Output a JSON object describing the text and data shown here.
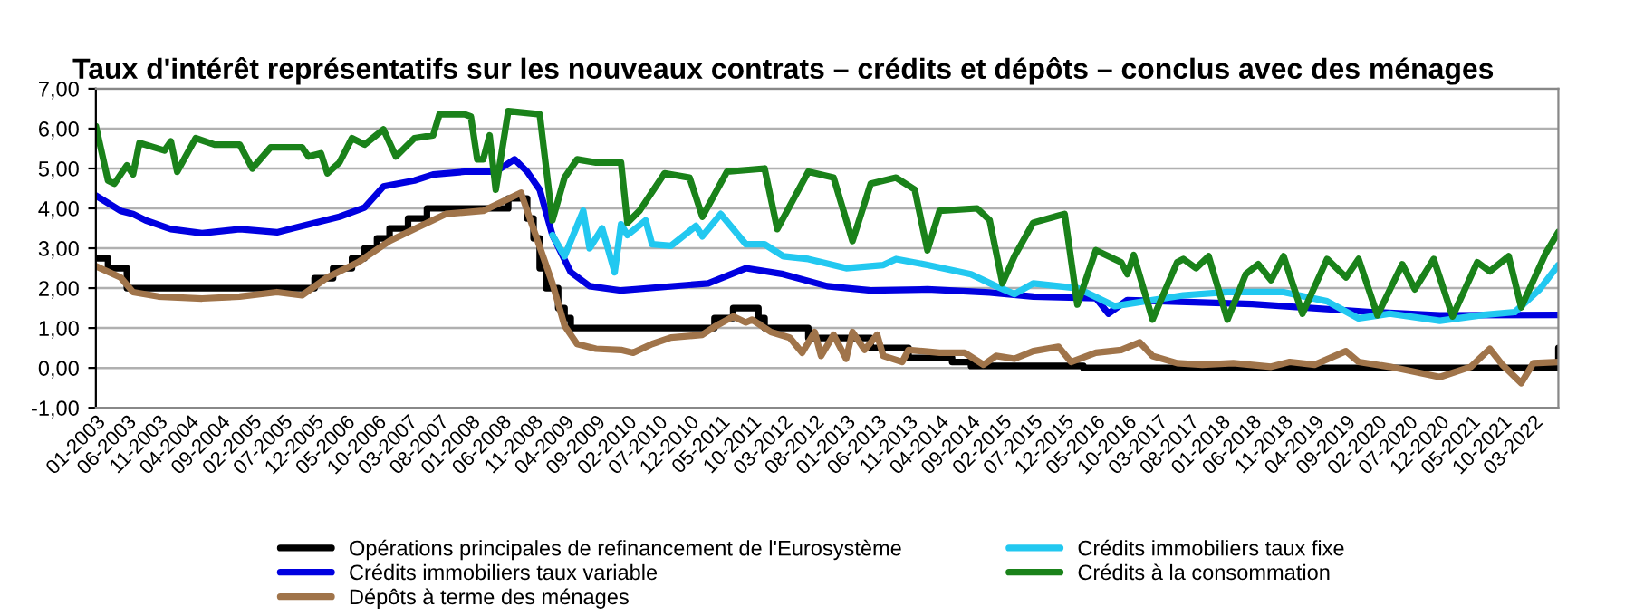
{
  "chart_data": {
    "type": "line",
    "title": "Taux d'intérêt représentatifs sur les nouveaux contrats – crédits et dépôts – conclus avec des ménages",
    "ylim": [
      -1,
      7
    ],
    "yticks": [
      {
        "value": -1,
        "label": "-1,00"
      },
      {
        "value": 0,
        "label": "0,00"
      },
      {
        "value": 1,
        "label": "1,00"
      },
      {
        "value": 2,
        "label": "2,00"
      },
      {
        "value": 3,
        "label": "3,00"
      },
      {
        "value": 4,
        "label": "4,00"
      },
      {
        "value": 5,
        "label": "5,00"
      },
      {
        "value": 6,
        "label": "6,00"
      },
      {
        "value": 7,
        "label": "7,00"
      }
    ],
    "xlim": [
      "2003-01",
      "2022-07"
    ],
    "xticks": [
      {
        "value": "2003-01",
        "label": "01-2003"
      },
      {
        "value": "2003-06",
        "label": "06-2003"
      },
      {
        "value": "2003-11",
        "label": "11-2003"
      },
      {
        "value": "2004-04",
        "label": "04-2004"
      },
      {
        "value": "2004-09",
        "label": "09-2004"
      },
      {
        "value": "2005-02",
        "label": "02-2005"
      },
      {
        "value": "2005-07",
        "label": "07-2005"
      },
      {
        "value": "2005-12",
        "label": "12-2005"
      },
      {
        "value": "2006-05",
        "label": "05-2006"
      },
      {
        "value": "2006-10",
        "label": "10-2006"
      },
      {
        "value": "2007-03",
        "label": "03-2007"
      },
      {
        "value": "2007-08",
        "label": "08-2007"
      },
      {
        "value": "2008-01",
        "label": "01-2008"
      },
      {
        "value": "2008-06",
        "label": "06-2008"
      },
      {
        "value": "2008-11",
        "label": "11-2008"
      },
      {
        "value": "2009-04",
        "label": "04-2009"
      },
      {
        "value": "2009-09",
        "label": "09-2009"
      },
      {
        "value": "2010-02",
        "label": "02-2010"
      },
      {
        "value": "2010-07",
        "label": "07-2010"
      },
      {
        "value": "2010-12",
        "label": "12-2010"
      },
      {
        "value": "2011-05",
        "label": "05-2011"
      },
      {
        "value": "2011-10",
        "label": "10-2011"
      },
      {
        "value": "2012-03",
        "label": "03-2012"
      },
      {
        "value": "2012-08",
        "label": "08-2012"
      },
      {
        "value": "2013-01",
        "label": "01-2013"
      },
      {
        "value": "2013-06",
        "label": "06-2013"
      },
      {
        "value": "2013-11",
        "label": "11-2013"
      },
      {
        "value": "2014-04",
        "label": "04-2014"
      },
      {
        "value": "2014-09",
        "label": "09-2014"
      },
      {
        "value": "2015-02",
        "label": "02-2015"
      },
      {
        "value": "2015-07",
        "label": "07-2015"
      },
      {
        "value": "2015-12",
        "label": "12-2015"
      },
      {
        "value": "2016-05",
        "label": "05-2016"
      },
      {
        "value": "2016-10",
        "label": "10-2016"
      },
      {
        "value": "2017-03",
        "label": "03-2017"
      },
      {
        "value": "2017-08",
        "label": "08-2017"
      },
      {
        "value": "2018-01",
        "label": "01-2018"
      },
      {
        "value": "2018-06",
        "label": "06-2018"
      },
      {
        "value": "2018-11",
        "label": "11-2018"
      },
      {
        "value": "2019-04",
        "label": "04-2019"
      },
      {
        "value": "2019-09",
        "label": "09-2019"
      },
      {
        "value": "2020-02",
        "label": "02-2020"
      },
      {
        "value": "2020-07",
        "label": "07-2020"
      },
      {
        "value": "2020-12",
        "label": "12-2020"
      },
      {
        "value": "2021-05",
        "label": "05-2021"
      },
      {
        "value": "2021-10",
        "label": "10-2021"
      },
      {
        "value": "2022-03",
        "label": "03-2022"
      }
    ],
    "grid": "y",
    "legend": "bottom",
    "series": [
      {
        "name": "Opérations principales de refinancement de l'Eurosystème",
        "type": "step",
        "color": "#000000",
        "x": [
          "2003-01",
          "2003-03",
          "2003-06",
          "2005-12",
          "2006-03",
          "2006-06",
          "2006-08",
          "2006-10",
          "2006-12",
          "2007-03",
          "2007-06",
          "2008-07",
          "2008-10",
          "2008-11",
          "2008-12",
          "2009-01",
          "2009-03",
          "2009-04",
          "2009-05",
          "2011-04",
          "2011-07",
          "2011-11",
          "2011-12",
          "2012-07",
          "2013-05",
          "2013-11",
          "2014-06",
          "2014-09",
          "2016-03",
          "2022-06",
          "2022-07"
        ],
        "values": [
          2.75,
          2.5,
          2.0,
          2.25,
          2.5,
          2.75,
          3.0,
          3.25,
          3.5,
          3.75,
          4.0,
          4.25,
          3.75,
          3.25,
          2.5,
          2.0,
          1.5,
          1.25,
          1.0,
          1.25,
          1.5,
          1.25,
          1.0,
          0.75,
          0.5,
          0.25,
          0.15,
          0.05,
          0.0,
          0.0,
          0.5
        ]
      },
      {
        "name": "Crédits immobiliers taux variable",
        "color": "#0000e0",
        "x": [
          "2003-01",
          "2003-05",
          "2003-07",
          "2003-09",
          "2004-01",
          "2004-06",
          "2004-12",
          "2005-06",
          "2005-10",
          "2006-04",
          "2006-08",
          "2006-11",
          "2007-04",
          "2007-07",
          "2007-12",
          "2008-05",
          "2008-08",
          "2008-10",
          "2008-12",
          "2009-02",
          "2009-05",
          "2009-08",
          "2010-01",
          "2011-03",
          "2011-09",
          "2012-03",
          "2012-10",
          "2013-05",
          "2014-02",
          "2014-12",
          "2015-07",
          "2016-05",
          "2016-07",
          "2016-10",
          "2018-06",
          "2020-01",
          "2020-12",
          "2022-07"
        ],
        "values": [
          4.32,
          3.94,
          3.86,
          3.7,
          3.48,
          3.38,
          3.48,
          3.4,
          3.56,
          3.79,
          4.02,
          4.55,
          4.7,
          4.85,
          4.92,
          4.92,
          5.23,
          4.92,
          4.47,
          3.33,
          2.4,
          2.05,
          1.94,
          2.12,
          2.5,
          2.35,
          2.05,
          1.94,
          1.97,
          1.89,
          1.79,
          1.75,
          1.36,
          1.7,
          1.6,
          1.4,
          1.32,
          1.33
        ]
      },
      {
        "name": "Dépôts à terme des ménages",
        "color": "#a0744a",
        "x": [
          "2003-01",
          "2003-05",
          "2003-07",
          "2003-11",
          "2004-06",
          "2004-12",
          "2005-06",
          "2005-10",
          "2006-02",
          "2006-07",
          "2006-12",
          "2007-05",
          "2007-09",
          "2008-03",
          "2008-07",
          "2008-09",
          "2008-11",
          "2009-02",
          "2009-04",
          "2009-06",
          "2009-09",
          "2010-01",
          "2010-03",
          "2010-06",
          "2010-09",
          "2011-02",
          "2011-04",
          "2011-07",
          "2011-09",
          "2011-10",
          "2012-01",
          "2012-04",
          "2012-06",
          "2012-08",
          "2012-09",
          "2012-11",
          "2013-01",
          "2013-02",
          "2013-04",
          "2013-06",
          "2013-07",
          "2013-10",
          "2013-11",
          "2014-04",
          "2014-08",
          "2014-11",
          "2015-01",
          "2015-04",
          "2015-07",
          "2015-11",
          "2016-01",
          "2016-05",
          "2016-09",
          "2016-12",
          "2017-02",
          "2017-06",
          "2017-10",
          "2018-03",
          "2018-09",
          "2018-12",
          "2019-04",
          "2019-09",
          "2019-11",
          "2020-04",
          "2020-12",
          "2021-05",
          "2021-08",
          "2021-10",
          "2022-01",
          "2022-03",
          "2022-07"
        ],
        "values": [
          2.55,
          2.27,
          1.9,
          1.79,
          1.74,
          1.79,
          1.9,
          1.82,
          2.27,
          2.65,
          3.18,
          3.56,
          3.86,
          3.94,
          4.24,
          4.39,
          3.48,
          2.12,
          1.06,
          0.6,
          0.48,
          0.45,
          0.38,
          0.6,
          0.76,
          0.83,
          1.03,
          1.29,
          1.14,
          1.21,
          0.9,
          0.76,
          0.38,
          0.9,
          0.3,
          0.83,
          0.23,
          0.9,
          0.45,
          0.83,
          0.3,
          0.15,
          0.45,
          0.38,
          0.38,
          0.08,
          0.3,
          0.23,
          0.42,
          0.53,
          0.15,
          0.38,
          0.45,
          0.64,
          0.3,
          0.12,
          0.08,
          0.12,
          0.03,
          0.15,
          0.08,
          0.42,
          0.15,
          0.03,
          -0.23,
          0.03,
          0.48,
          0.08,
          -0.38,
          0.12,
          0.15
        ]
      },
      {
        "name": "Crédits immobiliers taux fixe",
        "color": "#22c8f0",
        "x": [
          "2009-02",
          "2009-04",
          "2009-07",
          "2009-08",
          "2009-10",
          "2009-12",
          "2010-01",
          "2010-02",
          "2010-05",
          "2010-06",
          "2010-09",
          "2011-01",
          "2011-02",
          "2011-05",
          "2011-09",
          "2011-12",
          "2012-03",
          "2012-07",
          "2013-01",
          "2013-07",
          "2013-09",
          "2014-02",
          "2014-09",
          "2015-01",
          "2015-04",
          "2015-07",
          "2016-02",
          "2016-08",
          "2017-02",
          "2017-07",
          "2018-02",
          "2018-11",
          "2019-06",
          "2019-11",
          "2020-04",
          "2020-12",
          "2021-07",
          "2021-12",
          "2022-04",
          "2022-07"
        ],
        "values": [
          3.33,
          2.8,
          3.94,
          3.0,
          3.5,
          2.4,
          3.6,
          3.33,
          3.7,
          3.1,
          3.06,
          3.56,
          3.3,
          3.86,
          3.1,
          3.1,
          2.8,
          2.73,
          2.5,
          2.58,
          2.73,
          2.58,
          2.35,
          2.05,
          1.85,
          2.12,
          2.0,
          1.55,
          1.7,
          1.82,
          1.9,
          1.9,
          1.67,
          1.24,
          1.36,
          1.18,
          1.33,
          1.4,
          1.97,
          2.58
        ]
      },
      {
        "name": "Crédits à la consommation",
        "color": "#1a821a",
        "x": [
          "2003-01",
          "2003-03",
          "2003-04",
          "2003-06",
          "2003-07",
          "2003-08",
          "2003-12",
          "2004-01",
          "2004-02",
          "2004-05",
          "2004-08",
          "2004-12",
          "2005-02",
          "2005-05",
          "2005-10",
          "2005-11",
          "2006-01",
          "2006-02",
          "2006-04",
          "2006-06",
          "2006-08",
          "2006-11",
          "2007-01",
          "2007-04",
          "2007-07",
          "2007-08",
          "2007-12",
          "2008-01",
          "2008-02",
          "2008-03",
          "2008-04",
          "2008-05",
          "2008-07",
          "2008-12",
          "2009-02",
          "2009-04",
          "2009-06",
          "2009-09",
          "2010-01",
          "2010-02",
          "2010-04",
          "2010-08",
          "2010-12",
          "2011-02",
          "2011-06",
          "2011-12",
          "2012-02",
          "2012-07",
          "2012-11",
          "2013-02",
          "2013-05",
          "2013-09",
          "2013-12",
          "2014-02",
          "2014-04",
          "2014-10",
          "2014-12",
          "2015-02",
          "2015-04",
          "2015-07",
          "2015-11",
          "2015-12",
          "2016-02",
          "2016-05",
          "2016-09",
          "2016-10",
          "2016-11",
          "2017-02",
          "2017-06",
          "2017-07",
          "2017-09",
          "2017-11",
          "2018-02",
          "2018-05",
          "2018-07",
          "2018-09",
          "2018-11",
          "2019-02",
          "2019-06",
          "2019-09",
          "2019-11",
          "2020-02",
          "2020-06",
          "2020-08",
          "2020-11",
          "2021-02",
          "2021-06",
          "2021-08",
          "2021-11",
          "2022-01",
          "2022-05",
          "2022-07"
        ],
        "values": [
          6.06,
          4.7,
          4.62,
          5.08,
          4.85,
          5.64,
          5.45,
          5.68,
          4.92,
          5.76,
          5.6,
          5.6,
          5.0,
          5.53,
          5.53,
          5.3,
          5.38,
          4.88,
          5.15,
          5.76,
          5.6,
          5.98,
          5.3,
          5.76,
          5.83,
          6.36,
          6.36,
          6.3,
          5.23,
          5.23,
          5.83,
          4.47,
          6.44,
          6.36,
          3.7,
          4.77,
          5.23,
          5.15,
          5.15,
          3.64,
          3.94,
          4.88,
          4.77,
          3.79,
          4.92,
          5.0,
          3.48,
          4.92,
          4.77,
          3.18,
          4.62,
          4.77,
          4.47,
          2.95,
          3.94,
          4.0,
          3.7,
          2.12,
          2.8,
          3.64,
          3.82,
          3.86,
          1.59,
          2.95,
          2.65,
          2.35,
          2.83,
          1.21,
          2.65,
          2.73,
          2.5,
          2.8,
          1.21,
          2.35,
          2.6,
          2.2,
          2.8,
          1.36,
          2.73,
          2.27,
          2.73,
          1.32,
          2.6,
          1.97,
          2.73,
          1.29,
          2.65,
          2.42,
          2.8,
          1.52,
          2.88,
          3.41
        ]
      }
    ]
  }
}
